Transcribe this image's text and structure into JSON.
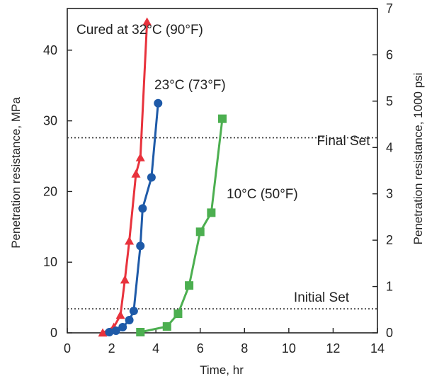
{
  "chart_data": {
    "type": "line",
    "xlabel": "Time, hr",
    "ylabel": "Penetration resistance, MPa",
    "y2label": "Penetration resistance, 1000 psi",
    "xlim": [
      0,
      14
    ],
    "ylim": [
      0,
      45.9
    ],
    "y2lim": [
      0,
      7
    ],
    "x_ticks": [
      "0",
      "2",
      "4",
      "6",
      "8",
      "10",
      "12",
      "14"
    ],
    "y_ticks": [
      "0",
      "10",
      "20",
      "30",
      "40"
    ],
    "y2_ticks": [
      "0",
      "1",
      "2",
      "3",
      "4",
      "5",
      "6",
      "7"
    ],
    "grid": false,
    "series": [
      {
        "name": "Cured at 32°C (90°F)",
        "color": "#e8323c",
        "marker": "triangle",
        "x": [
          1.6,
          2.1,
          2.4,
          2.6,
          2.8,
          3.1,
          3.3,
          3.6
        ],
        "y": [
          0.0,
          0.8,
          2.5,
          7.5,
          13.0,
          22.5,
          24.8,
          44.0
        ]
      },
      {
        "name": "23°C (73°F)",
        "color": "#1e5aa8",
        "marker": "circle",
        "x": [
          1.9,
          2.2,
          2.5,
          2.8,
          3.0,
          3.3,
          3.4,
          3.8,
          4.1
        ],
        "y": [
          0.1,
          0.3,
          0.8,
          1.8,
          3.1,
          12.3,
          17.6,
          22.0,
          32.5
        ]
      },
      {
        "name": "10°C (50°F)",
        "color": "#4caf50",
        "marker": "square",
        "x": [
          3.3,
          4.5,
          5.0,
          5.5,
          6.0,
          6.5,
          7.0
        ],
        "y": [
          0.1,
          0.9,
          2.7,
          6.7,
          14.3,
          17.0,
          30.3
        ]
      }
    ],
    "reference_lines": [
      {
        "label": "Final Set",
        "y": 27.6
      },
      {
        "label": "Initial Set",
        "y": 3.4
      }
    ]
  }
}
